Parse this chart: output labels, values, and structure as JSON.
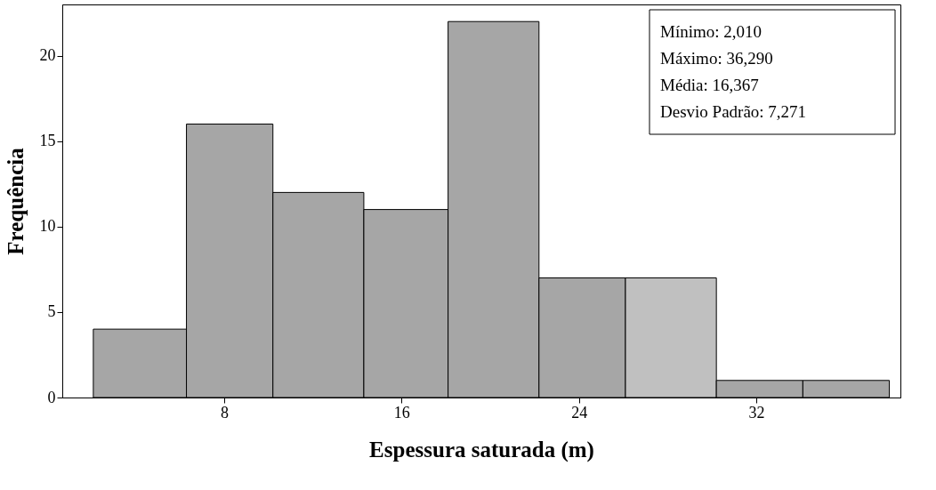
{
  "chart_data": {
    "type": "histogram",
    "bins": [
      2.1,
      6.3,
      10.2,
      14.3,
      18.1,
      22.2,
      26.1,
      30.2,
      34.1,
      38.0
    ],
    "values": [
      4,
      16,
      12,
      11,
      22,
      7,
      7,
      1,
      1
    ],
    "colors": [
      "#a6a6a6",
      "#a6a6a6",
      "#a6a6a6",
      "#a6a6a6",
      "#a6a6a6",
      "#a6a6a6",
      "#c0c0c0",
      "#a6a6a6",
      "#a6a6a6"
    ],
    "xlabel": "Espessura saturada (m)",
    "ylabel": "Frequência",
    "xlim": [
      0.7,
      38.5
    ],
    "xticks": [
      8,
      16,
      24,
      32
    ],
    "ylim": [
      0,
      23
    ],
    "yticks": [
      0,
      5,
      10,
      15,
      20
    ],
    "grid": false,
    "annotations": [
      "Mínimo: 2,010",
      "Máximo: 36,290",
      "Média: 16,367",
      "Desvio Padrão: 7,271"
    ]
  }
}
